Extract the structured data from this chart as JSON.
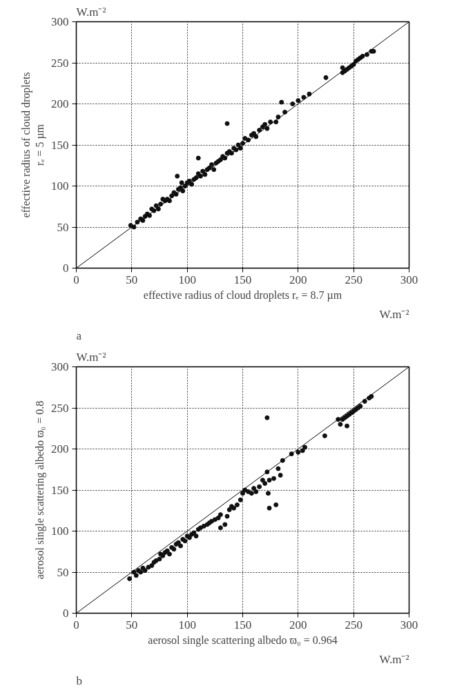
{
  "chart_data": [
    {
      "type": "scatter",
      "xlabel": "effective radius of cloud droplets rₑ = 8.7 µm",
      "ylabel": "effective radius of cloud droplets\nrₑ = 5 µm",
      "annotations": [
        "W.m⁻²",
        "W.m⁻²",
        "a"
      ],
      "xlim": [
        0,
        300
      ],
      "ylim": [
        0,
        300
      ],
      "xticks": [
        0,
        50,
        100,
        150,
        200,
        250,
        300
      ],
      "yticks": [
        0,
        50,
        100,
        150,
        200,
        250,
        300
      ],
      "grid": true,
      "series": [
        {
          "marker": "circle",
          "color": "#111111",
          "x": [
            49,
            52,
            55,
            58,
            60,
            62,
            64,
            66,
            68,
            70,
            72,
            74,
            76,
            78,
            80,
            82,
            84,
            86,
            88,
            90,
            92,
            94,
            95,
            96,
            98,
            100,
            102,
            104,
            106,
            108,
            110,
            112,
            114,
            116,
            118,
            120,
            122,
            124,
            126,
            128,
            130,
            132,
            134,
            136,
            138,
            140,
            142,
            144,
            146,
            148,
            150,
            152,
            155,
            158,
            160,
            162,
            165,
            168,
            170,
            172,
            175,
            180,
            182,
            185,
            188,
            195,
            200,
            205,
            210,
            225,
            136,
            110,
            91,
            240,
            240,
            242,
            244,
            246,
            248,
            250,
            252,
            254,
            256,
            258,
            262,
            266,
            268
          ],
          "values": [
            52,
            50,
            56,
            60,
            58,
            63,
            66,
            64,
            72,
            70,
            76,
            72,
            78,
            84,
            82,
            84,
            82,
            88,
            92,
            90,
            96,
            98,
            104,
            94,
            100,
            104,
            106,
            102,
            108,
            110,
            115,
            112,
            118,
            114,
            120,
            122,
            126,
            120,
            128,
            130,
            132,
            136,
            134,
            140,
            142,
            140,
            146,
            144,
            150,
            146,
            152,
            158,
            156,
            162,
            164,
            160,
            168,
            172,
            175,
            170,
            178,
            178,
            184,
            202,
            190,
            200,
            204,
            208,
            212,
            232,
            176,
            134,
            112,
            244,
            238,
            240,
            242,
            244,
            246,
            248,
            252,
            254,
            256,
            258,
            260,
            264,
            264
          ]
        },
        {
          "type": "line",
          "color": "#000000",
          "x": [
            0,
            300
          ],
          "values": [
            0,
            300
          ]
        }
      ]
    },
    {
      "type": "scatter",
      "xlabel": "aerosol single scattering albedo ϖ₀ = 0.964",
      "ylabel": "aerosol single scattering albedo ϖ₀ = 0.8",
      "annotations": [
        "W.m⁻²",
        "W.m⁻²",
        "b"
      ],
      "xlim": [
        0,
        300
      ],
      "ylim": [
        0,
        300
      ],
      "xticks": [
        0,
        50,
        100,
        150,
        200,
        250,
        300
      ],
      "yticks": [
        0,
        50,
        100,
        150,
        200,
        250,
        300
      ],
      "grid": true,
      "series": [
        {
          "marker": "circle",
          "color": "#111111",
          "x": [
            48,
            52,
            54,
            56,
            58,
            60,
            62,
            65,
            68,
            70,
            72,
            75,
            76,
            78,
            80,
            82,
            84,
            86,
            88,
            90,
            92,
            94,
            96,
            98,
            100,
            102,
            104,
            106,
            108,
            110,
            112,
            115,
            118,
            120,
            122,
            125,
            128,
            130,
            130,
            134,
            136,
            138,
            140,
            142,
            145,
            148,
            150,
            152,
            155,
            158,
            160,
            162,
            165,
            168,
            170,
            172,
            172,
            173,
            174,
            174,
            178,
            180,
            182,
            184,
            186,
            194,
            200,
            204,
            206,
            224,
            236,
            238,
            240,
            242,
            244,
            244,
            246,
            248,
            250,
            252,
            254,
            256,
            260,
            264,
            266
          ],
          "values": [
            42,
            50,
            46,
            52,
            50,
            55,
            52,
            56,
            58,
            62,
            64,
            66,
            72,
            70,
            74,
            76,
            72,
            80,
            78,
            84,
            86,
            82,
            90,
            88,
            94,
            92,
            96,
            98,
            94,
            102,
            104,
            106,
            108,
            110,
            112,
            114,
            116,
            120,
            104,
            108,
            118,
            126,
            130,
            128,
            132,
            138,
            146,
            150,
            148,
            146,
            152,
            148,
            154,
            162,
            158,
            238,
            172,
            146,
            162,
            128,
            164,
            132,
            176,
            168,
            186,
            194,
            196,
            198,
            202,
            216,
            236,
            230,
            236,
            238,
            240,
            228,
            242,
            244,
            246,
            248,
            250,
            252,
            258,
            262,
            264
          ]
        },
        {
          "type": "line",
          "color": "#000000",
          "x": [
            0,
            300
          ],
          "values": [
            0,
            300
          ]
        }
      ]
    }
  ]
}
